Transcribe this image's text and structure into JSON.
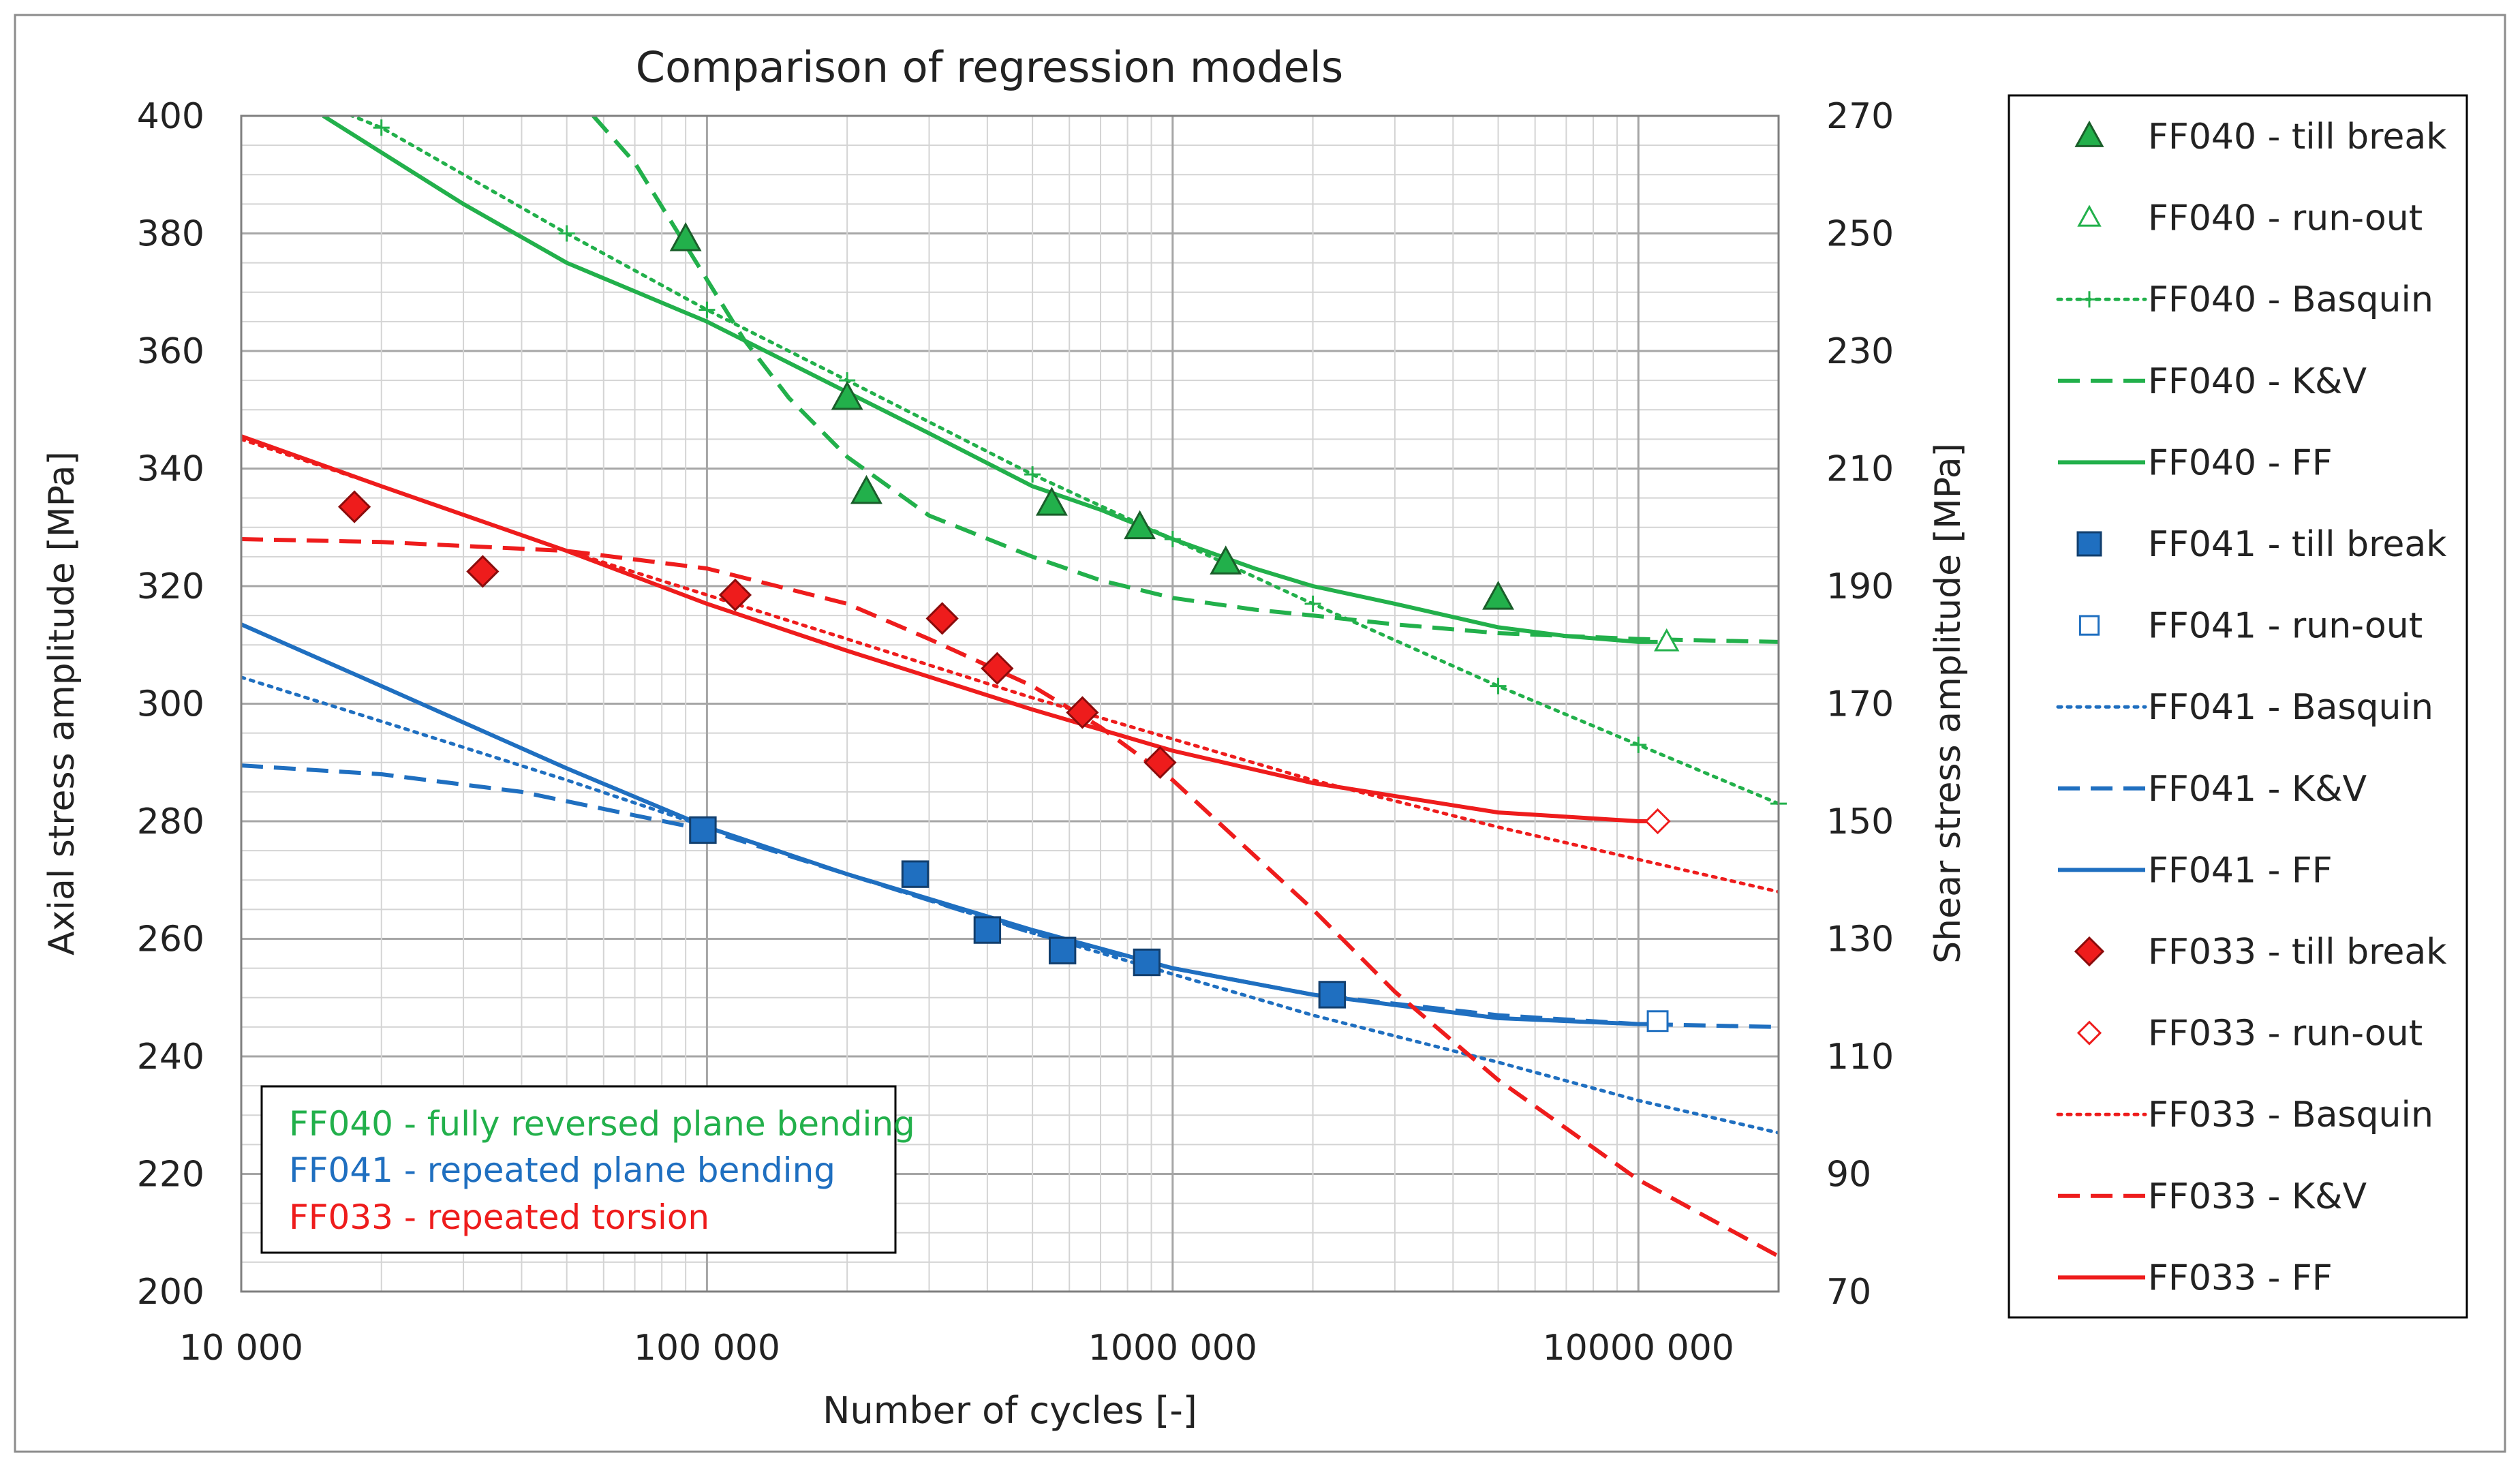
{
  "chart_data": {
    "type": "scatter",
    "title": "Comparison of regression models",
    "xlabel": "Number of cycles [-]",
    "ylabel": "Axial stress amplitude [MPa]",
    "y2label": "Shear stress amplitude [MPa]",
    "xscale": "log",
    "xlim": [
      10000,
      20000000
    ],
    "ylim": [
      200,
      400
    ],
    "y2lim": [
      70,
      270
    ],
    "x_ticks": [
      {
        "value": 10000,
        "label": "10 000"
      },
      {
        "value": 100000,
        "label": "100 000"
      },
      {
        "value": 1000000,
        "label": "1000 000"
      },
      {
        "value": 10000000,
        "label": "10000 000"
      }
    ],
    "y_ticks": [
      {
        "value": 200,
        "label": "200"
      },
      {
        "value": 220,
        "label": "220"
      },
      {
        "value": 240,
        "label": "240"
      },
      {
        "value": 260,
        "label": "260"
      },
      {
        "value": 280,
        "label": "280"
      },
      {
        "value": 300,
        "label": "300"
      },
      {
        "value": 320,
        "label": "320"
      },
      {
        "value": 340,
        "label": "340"
      },
      {
        "value": 360,
        "label": "360"
      },
      {
        "value": 380,
        "label": "380"
      },
      {
        "value": 400,
        "label": "400"
      }
    ],
    "y2_ticks": [
      {
        "value": 70,
        "label": "70"
      },
      {
        "value": 90,
        "label": "90"
      },
      {
        "value": 110,
        "label": "110"
      },
      {
        "value": 130,
        "label": "130"
      },
      {
        "value": 150,
        "label": "150"
      },
      {
        "value": 170,
        "label": "170"
      },
      {
        "value": 190,
        "label": "190"
      },
      {
        "value": 210,
        "label": "210"
      },
      {
        "value": 230,
        "label": "230"
      },
      {
        "value": 250,
        "label": "250"
      },
      {
        "value": 270,
        "label": "270"
      }
    ],
    "grid": true,
    "colors": {
      "green": "#22b04b",
      "blue": "#1f6fc0",
      "red": "#ee1c1c"
    },
    "annotation_box": [
      {
        "text": "FF040 - fully reversed plane bending",
        "color": "#22b04b"
      },
      {
        "text": "FF041 - repeated plane bending",
        "color": "#1f6fc0"
      },
      {
        "text": "FF033 - repeated torsion",
        "color": "#ee1c1c"
      }
    ],
    "series": [
      {
        "name": "FF040 - till break",
        "kind": "marker",
        "marker": "triangle",
        "filled": true,
        "color": "#22b04b",
        "axis": "left",
        "points": [
          [
            90000,
            379
          ],
          [
            200000,
            352
          ],
          [
            220000,
            336
          ],
          [
            550000,
            334
          ],
          [
            850000,
            330
          ],
          [
            1300000,
            324
          ],
          [
            5000000,
            318
          ]
        ]
      },
      {
        "name": "FF040 - run-out",
        "kind": "marker",
        "marker": "triangle",
        "filled": false,
        "color": "#22b04b",
        "axis": "left",
        "points": [
          [
            11500000,
            310.5
          ]
        ]
      },
      {
        "name": "FF040 - Basquin",
        "kind": "line",
        "style": "dotted",
        "plus": true,
        "color": "#22b04b",
        "axis": "left",
        "points": [
          [
            15000,
            402
          ],
          [
            20000,
            398
          ],
          [
            50000,
            380
          ],
          [
            100000,
            367
          ],
          [
            200000,
            355
          ],
          [
            500000,
            339
          ],
          [
            1000000,
            328
          ],
          [
            2000000,
            317
          ],
          [
            5000000,
            303
          ],
          [
            10000000,
            293
          ],
          [
            20000000,
            283
          ]
        ]
      },
      {
        "name": "FF040 - K&V",
        "kind": "line",
        "style": "dashed",
        "color": "#22b04b",
        "axis": "left",
        "points": [
          [
            57000,
            400
          ],
          [
            70000,
            392
          ],
          [
            90000,
            378
          ],
          [
            120000,
            362
          ],
          [
            150000,
            352
          ],
          [
            200000,
            342
          ],
          [
            300000,
            332
          ],
          [
            500000,
            325
          ],
          [
            700000,
            321
          ],
          [
            1000000,
            318
          ],
          [
            1500000,
            316
          ],
          [
            2000000,
            315
          ],
          [
            3000000,
            313.5
          ],
          [
            5000000,
            312
          ],
          [
            10000000,
            311
          ],
          [
            20000000,
            310.5
          ]
        ]
      },
      {
        "name": "FF040 - FF",
        "kind": "line",
        "style": "solid",
        "color": "#22b04b",
        "axis": "left",
        "points": [
          [
            15000,
            400
          ],
          [
            30000,
            385
          ],
          [
            50000,
            375
          ],
          [
            100000,
            365
          ],
          [
            200000,
            353
          ],
          [
            300000,
            346
          ],
          [
            500000,
            337
          ],
          [
            700000,
            333
          ],
          [
            1000000,
            328
          ],
          [
            1500000,
            323
          ],
          [
            2000000,
            320
          ],
          [
            3000000,
            317
          ],
          [
            5000000,
            313
          ],
          [
            7000000,
            311.5
          ],
          [
            10000000,
            310.5
          ],
          [
            11000000,
            310.5
          ]
        ]
      },
      {
        "name": "FF041 - till break",
        "kind": "marker",
        "marker": "square",
        "filled": true,
        "color": "#1f6fc0",
        "axis": "left",
        "points": [
          [
            98000,
            278.5
          ],
          [
            280000,
            271
          ],
          [
            400000,
            261.5
          ],
          [
            580000,
            258
          ],
          [
            880000,
            256
          ],
          [
            2200000,
            250.5
          ]
        ]
      },
      {
        "name": "FF041 - run-out",
        "kind": "marker",
        "marker": "square",
        "filled": false,
        "color": "#1f6fc0",
        "axis": "left",
        "points": [
          [
            11000000,
            246
          ]
        ]
      },
      {
        "name": "FF041 - Basquin",
        "kind": "line",
        "style": "dotted",
        "color": "#1f6fc0",
        "axis": "left",
        "points": [
          [
            10000,
            304.5
          ],
          [
            20000,
            297
          ],
          [
            50000,
            287
          ],
          [
            100000,
            279
          ],
          [
            200000,
            271
          ],
          [
            500000,
            261
          ],
          [
            1000000,
            254
          ],
          [
            2000000,
            247
          ],
          [
            5000000,
            239
          ],
          [
            10000000,
            232.5
          ],
          [
            20000000,
            227
          ]
        ]
      },
      {
        "name": "FF041 - K&V",
        "kind": "line",
        "style": "dashed",
        "color": "#1f6fc0",
        "axis": "left",
        "points": [
          [
            10000,
            289.5
          ],
          [
            20000,
            288
          ],
          [
            40000,
            285
          ],
          [
            70000,
            281
          ],
          [
            100000,
            278.5
          ],
          [
            200000,
            271
          ],
          [
            500000,
            261
          ],
          [
            1000000,
            255
          ],
          [
            2000000,
            250.5
          ],
          [
            5000000,
            247
          ],
          [
            10000000,
            245.5
          ],
          [
            20000000,
            245
          ]
        ]
      },
      {
        "name": "FF041 - FF",
        "kind": "line",
        "style": "solid",
        "color": "#1f6fc0",
        "axis": "left",
        "points": [
          [
            10000,
            313.5
          ],
          [
            20000,
            303
          ],
          [
            50000,
            289
          ],
          [
            100000,
            279
          ],
          [
            200000,
            271
          ],
          [
            500000,
            261.5
          ],
          [
            1000000,
            255
          ],
          [
            2000000,
            250.5
          ],
          [
            5000000,
            246.5
          ],
          [
            10000000,
            245.5
          ],
          [
            11000000,
            245.5
          ]
        ]
      },
      {
        "name": "FF033 - till break",
        "kind": "marker",
        "marker": "diamond",
        "filled": true,
        "color": "#ee1c1c",
        "axis": "left",
        "points": [
          [
            17500,
            333.5
          ],
          [
            33000,
            322.5
          ],
          [
            115000,
            318.5
          ],
          [
            320000,
            314.5
          ],
          [
            420000,
            306
          ],
          [
            640000,
            298.5
          ],
          [
            940000,
            290
          ]
        ]
      },
      {
        "name": "FF033 - run-out",
        "kind": "marker",
        "marker": "diamond",
        "filled": false,
        "color": "#ee1c1c",
        "axis": "left",
        "points": [
          [
            11000000,
            280
          ]
        ]
      },
      {
        "name": "FF033 - Basquin",
        "kind": "line",
        "style": "dotted",
        "color": "#ee1c1c",
        "axis": "left",
        "points": [
          [
            10000,
            345
          ],
          [
            20000,
            337
          ],
          [
            50000,
            326
          ],
          [
            100000,
            318.5
          ],
          [
            200000,
            311
          ],
          [
            500000,
            301
          ],
          [
            1000000,
            294
          ],
          [
            2000000,
            287
          ],
          [
            5000000,
            279
          ],
          [
            10000000,
            273.5
          ],
          [
            20000000,
            268
          ]
        ]
      },
      {
        "name": "FF033 - K&V",
        "kind": "line",
        "style": "dashed",
        "color": "#ee1c1c",
        "axis": "left",
        "points": [
          [
            10000,
            328
          ],
          [
            20000,
            327.5
          ],
          [
            50000,
            326
          ],
          [
            100000,
            323
          ],
          [
            200000,
            317
          ],
          [
            300000,
            311
          ],
          [
            500000,
            303
          ],
          [
            700000,
            296
          ],
          [
            1000000,
            287
          ],
          [
            2000000,
            265
          ],
          [
            3000000,
            251
          ],
          [
            5000000,
            236
          ],
          [
            10000000,
            219
          ],
          [
            20000000,
            206
          ]
        ]
      },
      {
        "name": "FF033 - FF",
        "kind": "line",
        "style": "solid",
        "color": "#ee1c1c",
        "axis": "left",
        "points": [
          [
            10000,
            345.5
          ],
          [
            20000,
            337
          ],
          [
            50000,
            326
          ],
          [
            100000,
            317
          ],
          [
            200000,
            309
          ],
          [
            500000,
            299
          ],
          [
            1000000,
            292
          ],
          [
            2000000,
            286.5
          ],
          [
            5000000,
            281.5
          ],
          [
            10000000,
            280
          ],
          [
            11000000,
            280
          ]
        ]
      }
    ],
    "legend_position": "right",
    "legend_order": [
      "FF040 - till break",
      "FF040 - run-out",
      "FF040 - Basquin",
      "FF040 - K&V",
      "FF040 - FF",
      "FF041 - till break",
      "FF041 - run-out",
      "FF041 - Basquin",
      "FF041 - K&V",
      "FF041 - FF",
      "FF033 - till break",
      "FF033 - run-out",
      "FF033 - Basquin",
      "FF033 - K&V",
      "FF033 - FF"
    ]
  }
}
